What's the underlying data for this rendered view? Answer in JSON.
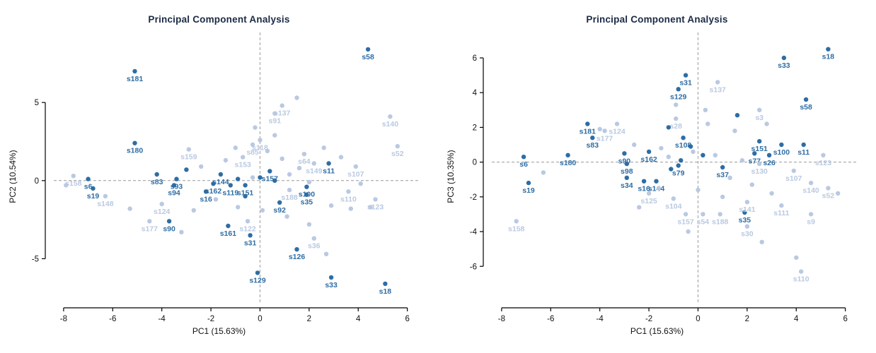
{
  "figure": {
    "background": "#ffffff",
    "dark_point_color": "#2e6da4",
    "light_point_color": "#b9c9e2",
    "title_color": "#1b2a45",
    "axis_color": "#000000",
    "zero_line_color": "#9a9a9a"
  },
  "chart_data": [
    {
      "type": "scatter",
      "title": "Principal Component Analysis",
      "xlabel": "PC1 (15.63%)",
      "ylabel": "PC2 (10.54%)",
      "xlim": [
        -8.4,
        6.5
      ],
      "ylim": [
        -7.6,
        9.3
      ],
      "xticks": [
        -8,
        -6,
        -4,
        -2,
        0,
        2,
        4,
        6
      ],
      "yticks": [
        -5,
        0,
        5
      ],
      "grid": "dashed lines at x=0 and y=0",
      "legend": "none",
      "groups": {
        "d": "#2e6da4",
        "l": "#b9c9e2"
      },
      "points": [
        {
          "id": "s58",
          "x": 4.4,
          "y": 8.4,
          "g": "d"
        },
        {
          "id": "s181",
          "x": -5.1,
          "y": 7.0,
          "g": "d"
        },
        {
          "id": "s180",
          "x": -5.1,
          "y": 2.4,
          "g": "d"
        },
        {
          "id": "s83",
          "x": -4.2,
          "y": 0.4,
          "g": "d"
        },
        {
          "id": "s93",
          "x": -3.4,
          "y": 0.1,
          "g": "d"
        },
        {
          "id": "s94",
          "x": -3.5,
          "y": -0.3,
          "g": "d"
        },
        {
          "id": "s6",
          "x": -7.0,
          "y": 0.1,
          "g": "d"
        },
        {
          "id": "s19",
          "x": -6.8,
          "y": -0.5,
          "g": "d"
        },
        {
          "id": "s144",
          "x": -1.6,
          "y": 0.4,
          "g": "d"
        },
        {
          "id": "s162",
          "x": -1.9,
          "y": -0.2,
          "g": "d"
        },
        {
          "id": "s16",
          "x": -2.2,
          "y": -0.7,
          "g": "d"
        },
        {
          "id": "s119",
          "x": -1.2,
          "y": -0.3,
          "g": "d"
        },
        {
          "id": "s151",
          "x": -0.6,
          "y": -0.3,
          "g": "d"
        },
        {
          "id": "s157",
          "x": 0.4,
          "y": 0.6,
          "g": "d"
        },
        {
          "id": "s11",
          "x": 2.8,
          "y": 1.1,
          "g": "d"
        },
        {
          "id": "s100",
          "x": 1.9,
          "y": -0.4,
          "g": "d"
        },
        {
          "id": "s35",
          "x": 1.9,
          "y": -0.9,
          "g": "d"
        },
        {
          "id": "s92",
          "x": 0.8,
          "y": -1.4,
          "g": "d"
        },
        {
          "id": "s90",
          "x": -3.7,
          "y": -2.6,
          "g": "d"
        },
        {
          "id": "s161",
          "x": -1.3,
          "y": -2.9,
          "g": "d"
        },
        {
          "id": "s31",
          "x": -0.4,
          "y": -3.5,
          "g": "d"
        },
        {
          "id": "s126",
          "x": 1.5,
          "y": -4.4,
          "g": "d"
        },
        {
          "id": "s129",
          "x": -0.1,
          "y": -5.9,
          "g": "d"
        },
        {
          "id": "s33",
          "x": 2.9,
          "y": -6.2,
          "g": "d"
        },
        {
          "id": "s18",
          "x": 5.1,
          "y": -6.6,
          "g": "d"
        },
        {
          "id": "s137",
          "x": 0.9,
          "y": 4.8,
          "g": "l"
        },
        {
          "id": "s91",
          "x": 0.6,
          "y": 4.3,
          "g": "l"
        },
        {
          "id": "s140",
          "x": 5.3,
          "y": 4.1,
          "g": "l"
        },
        {
          "id": "s52",
          "x": 5.6,
          "y": 2.2,
          "g": "l"
        },
        {
          "id": "s118",
          "x": 0.0,
          "y": 2.6,
          "g": "l"
        },
        {
          "id": "s85",
          "x": -0.3,
          "y": 2.3,
          "g": "l"
        },
        {
          "id": "s159",
          "x": -2.9,
          "y": 2.0,
          "g": "l"
        },
        {
          "id": "s153",
          "x": -0.7,
          "y": 1.5,
          "g": "l"
        },
        {
          "id": "s64",
          "x": 1.8,
          "y": 1.7,
          "g": "l"
        },
        {
          "id": "s149",
          "x": 2.2,
          "y": 1.1,
          "g": "l"
        },
        {
          "id": "s107",
          "x": 3.9,
          "y": 0.9,
          "g": "l"
        },
        {
          "id": "s188",
          "x": 1.2,
          "y": -0.6,
          "g": "l"
        },
        {
          "id": "s110",
          "x": 3.6,
          "y": -0.7,
          "g": "l"
        },
        {
          "id": "s123",
          "x": 4.7,
          "y": -1.2,
          "g": "l"
        },
        {
          "id": "s158",
          "x": -7.6,
          "y": 0.3,
          "g": "l"
        },
        {
          "id": "s148",
          "x": -6.3,
          "y": -1.0,
          "g": "l"
        },
        {
          "id": "s124",
          "x": -4.0,
          "y": -1.5,
          "g": "l"
        },
        {
          "id": "s177",
          "x": -4.5,
          "y": -2.6,
          "g": "l"
        },
        {
          "id": "s122",
          "x": -0.5,
          "y": -2.6,
          "g": "l"
        },
        {
          "id": "s36",
          "x": 2.2,
          "y": -3.7,
          "g": "l"
        },
        {
          "id": "",
          "x": 1.5,
          "y": 5.3,
          "g": "l"
        },
        {
          "id": "",
          "x": -0.2,
          "y": 3.4,
          "g": "l"
        },
        {
          "id": "",
          "x": 0.6,
          "y": 2.9,
          "g": "l"
        },
        {
          "id": "",
          "x": -1.0,
          "y": 2.1,
          "g": "l"
        },
        {
          "id": "",
          "x": 2.6,
          "y": 2.1,
          "g": "l"
        },
        {
          "id": "",
          "x": 3.3,
          "y": 1.5,
          "g": "l"
        },
        {
          "id": "",
          "x": -1.4,
          "y": 1.3,
          "g": "l"
        },
        {
          "id": "",
          "x": 0.9,
          "y": 1.4,
          "g": "l"
        },
        {
          "id": "",
          "x": 1.6,
          "y": 0.8,
          "g": "l"
        },
        {
          "id": "",
          "x": 0.3,
          "y": 1.9,
          "g": "l"
        },
        {
          "id": "",
          "x": 1.2,
          "y": 0.4,
          "g": "l"
        },
        {
          "id": "",
          "x": 2.0,
          "y": -0.1,
          "g": "l"
        },
        {
          "id": "",
          "x": 4.1,
          "y": -0.2,
          "g": "l"
        },
        {
          "id": "",
          "x": 2.9,
          "y": -1.6,
          "g": "l"
        },
        {
          "id": "",
          "x": 3.7,
          "y": -1.8,
          "g": "l"
        },
        {
          "id": "",
          "x": 4.5,
          "y": -1.7,
          "g": "l"
        },
        {
          "id": "",
          "x": 0.1,
          "y": -1.9,
          "g": "l"
        },
        {
          "id": "",
          "x": -0.9,
          "y": -1.7,
          "g": "l"
        },
        {
          "id": "",
          "x": -2.7,
          "y": -1.9,
          "g": "l"
        },
        {
          "id": "",
          "x": -1.8,
          "y": -1.2,
          "g": "l"
        },
        {
          "id": "",
          "x": -3.2,
          "y": -3.3,
          "g": "l"
        },
        {
          "id": "",
          "x": 1.1,
          "y": -2.3,
          "g": "l"
        },
        {
          "id": "",
          "x": 2.0,
          "y": -2.8,
          "g": "l"
        },
        {
          "id": "",
          "x": 2.7,
          "y": -4.7,
          "g": "l"
        },
        {
          "id": "",
          "x": -7.9,
          "y": -0.3,
          "g": "l"
        },
        {
          "id": "",
          "x": -2.4,
          "y": 0.9,
          "g": "l"
        },
        {
          "id": "",
          "x": -0.3,
          "y": 0.2,
          "g": "l"
        },
        {
          "id": "",
          "x": -5.3,
          "y": -1.8,
          "g": "l"
        },
        {
          "id": "",
          "x": -3.0,
          "y": 0.7,
          "g": "d"
        },
        {
          "id": "",
          "x": 0.0,
          "y": 0.2,
          "g": "d"
        },
        {
          "id": "",
          "x": -0.9,
          "y": 0.1,
          "g": "d"
        },
        {
          "id": "",
          "x": 0.6,
          "y": 0.0,
          "g": "d"
        },
        {
          "id": "",
          "x": -0.6,
          "y": -1.0,
          "g": "d"
        }
      ]
    },
    {
      "type": "scatter",
      "title": "Principal Component Analysis",
      "xlabel": "PC1 (15.63%)",
      "ylabel": "PC3 (10.35%)",
      "xlim": [
        -8.4,
        6.5
      ],
      "ylim": [
        -7.9,
        7.3
      ],
      "xticks": [
        -8,
        -6,
        -4,
        -2,
        0,
        2,
        4,
        6
      ],
      "yticks": [
        -6,
        -4,
        -2,
        0,
        2,
        4,
        6
      ],
      "grid": "dashed lines at x=0 and y=0",
      "legend": "none",
      "groups": {
        "d": "#2e6da4",
        "l": "#b9c9e2"
      },
      "points": [
        {
          "id": "s18",
          "x": 5.3,
          "y": 6.5,
          "g": "d"
        },
        {
          "id": "s33",
          "x": 3.5,
          "y": 6.0,
          "g": "d"
        },
        {
          "id": "s31",
          "x": -0.5,
          "y": 5.0,
          "g": "d"
        },
        {
          "id": "s129",
          "x": -0.8,
          "y": 4.2,
          "g": "d"
        },
        {
          "id": "s58",
          "x": 4.4,
          "y": 3.6,
          "g": "d"
        },
        {
          "id": "s181",
          "x": -4.5,
          "y": 2.2,
          "g": "d"
        },
        {
          "id": "s83",
          "x": -4.3,
          "y": 1.4,
          "g": "d"
        },
        {
          "id": "s108",
          "x": -0.6,
          "y": 1.4,
          "g": "d"
        },
        {
          "id": "s151",
          "x": 2.5,
          "y": 1.2,
          "g": "d"
        },
        {
          "id": "s100",
          "x": 3.4,
          "y": 1.0,
          "g": "d"
        },
        {
          "id": "s11",
          "x": 4.3,
          "y": 1.0,
          "g": "d"
        },
        {
          "id": "s77",
          "x": 2.3,
          "y": 0.5,
          "g": "d"
        },
        {
          "id": "s26",
          "x": 2.9,
          "y": 0.4,
          "g": "d"
        },
        {
          "id": "s180",
          "x": -5.3,
          "y": 0.4,
          "g": "d"
        },
        {
          "id": "s6",
          "x": -7.1,
          "y": 0.3,
          "g": "d"
        },
        {
          "id": "s90",
          "x": -3.0,
          "y": 0.5,
          "g": "d"
        },
        {
          "id": "s162",
          "x": -2.0,
          "y": 0.6,
          "g": "d"
        },
        {
          "id": "s98",
          "x": -2.9,
          "y": -0.1,
          "g": "d"
        },
        {
          "id": "s79",
          "x": -0.8,
          "y": -0.2,
          "g": "d"
        },
        {
          "id": "s37",
          "x": 1.0,
          "y": -0.3,
          "g": "d"
        },
        {
          "id": "s19",
          "x": -6.9,
          "y": -1.2,
          "g": "d"
        },
        {
          "id": "s34",
          "x": -2.9,
          "y": -0.9,
          "g": "d"
        },
        {
          "id": "s16",
          "x": -2.2,
          "y": -1.1,
          "g": "d"
        },
        {
          "id": "s144",
          "x": -1.7,
          "y": -1.1,
          "g": "d"
        },
        {
          "id": "s35",
          "x": 1.9,
          "y": -2.9,
          "g": "d"
        },
        {
          "id": "s137",
          "x": 0.8,
          "y": 4.6,
          "g": "l"
        },
        {
          "id": "s3",
          "x": 2.5,
          "y": 3.0,
          "g": "l"
        },
        {
          "id": "s28",
          "x": -0.9,
          "y": 2.5,
          "g": "l"
        },
        {
          "id": "s124",
          "x": -3.3,
          "y": 2.2,
          "g": "l"
        },
        {
          "id": "s177",
          "x": -3.8,
          "y": 1.8,
          "g": "l"
        },
        {
          "id": "s123",
          "x": 5.1,
          "y": 0.4,
          "g": "l"
        },
        {
          "id": "s130",
          "x": 2.5,
          "y": -0.1,
          "g": "l"
        },
        {
          "id": "s107",
          "x": 3.9,
          "y": -0.5,
          "g": "l"
        },
        {
          "id": "s140",
          "x": 4.6,
          "y": -1.2,
          "g": "l"
        },
        {
          "id": "s52",
          "x": 5.3,
          "y": -1.5,
          "g": "l"
        },
        {
          "id": "s125",
          "x": -2.0,
          "y": -1.8,
          "g": "l"
        },
        {
          "id": "s104",
          "x": -1.0,
          "y": -2.1,
          "g": "l"
        },
        {
          "id": "s141",
          "x": 2.0,
          "y": -2.3,
          "g": "l"
        },
        {
          "id": "s111",
          "x": 3.4,
          "y": -2.5,
          "g": "l"
        },
        {
          "id": "s9",
          "x": 4.6,
          "y": -3.0,
          "g": "l"
        },
        {
          "id": "s157",
          "x": -0.5,
          "y": -3.0,
          "g": "l"
        },
        {
          "id": "s54",
          "x": 0.2,
          "y": -3.0,
          "g": "l"
        },
        {
          "id": "s188",
          "x": 0.9,
          "y": -3.0,
          "g": "l"
        },
        {
          "id": "s30",
          "x": 2.0,
          "y": -3.7,
          "g": "l"
        },
        {
          "id": "s158",
          "x": -7.4,
          "y": -3.4,
          "g": "l"
        },
        {
          "id": "s110",
          "x": 4.2,
          "y": -6.3,
          "g": "l"
        },
        {
          "id": "",
          "x": -4.0,
          "y": 1.9,
          "g": "l"
        },
        {
          "id": "",
          "x": -2.6,
          "y": 1.0,
          "g": "l"
        },
        {
          "id": "",
          "x": -1.5,
          "y": 0.8,
          "g": "l"
        },
        {
          "id": "",
          "x": 0.4,
          "y": 2.2,
          "g": "l"
        },
        {
          "id": "",
          "x": 1.5,
          "y": 1.8,
          "g": "l"
        },
        {
          "id": "",
          "x": 2.8,
          "y": 2.2,
          "g": "l"
        },
        {
          "id": "",
          "x": -0.2,
          "y": 0.6,
          "g": "l"
        },
        {
          "id": "",
          "x": 0.7,
          "y": 0.4,
          "g": "l"
        },
        {
          "id": "",
          "x": 1.3,
          "y": -0.9,
          "g": "l"
        },
        {
          "id": "",
          "x": 2.2,
          "y": -1.3,
          "g": "l"
        },
        {
          "id": "",
          "x": 3.0,
          "y": -1.8,
          "g": "l"
        },
        {
          "id": "",
          "x": -1.6,
          "y": -1.5,
          "g": "l"
        },
        {
          "id": "",
          "x": -2.4,
          "y": -2.6,
          "g": "l"
        },
        {
          "id": "",
          "x": 0.0,
          "y": -1.6,
          "g": "l"
        },
        {
          "id": "",
          "x": 1.0,
          "y": -2.0,
          "g": "l"
        },
        {
          "id": "",
          "x": 2.6,
          "y": -4.6,
          "g": "l"
        },
        {
          "id": "",
          "x": 4.0,
          "y": -5.5,
          "g": "l"
        },
        {
          "id": "",
          "x": -0.4,
          "y": -4.0,
          "g": "l"
        },
        {
          "id": "",
          "x": -6.3,
          "y": -0.6,
          "g": "l"
        },
        {
          "id": "",
          "x": 5.7,
          "y": -1.8,
          "g": "l"
        },
        {
          "id": "",
          "x": -0.9,
          "y": 3.3,
          "g": "l"
        },
        {
          "id": "",
          "x": 0.3,
          "y": 3.0,
          "g": "l"
        },
        {
          "id": "",
          "x": 1.8,
          "y": 0.1,
          "g": "l"
        },
        {
          "id": "",
          "x": -1.2,
          "y": 0.3,
          "g": "l"
        },
        {
          "id": "",
          "x": -1.2,
          "y": 2.0,
          "g": "d"
        },
        {
          "id": "",
          "x": -0.3,
          "y": 0.9,
          "g": "d"
        },
        {
          "id": "",
          "x": 0.2,
          "y": 0.4,
          "g": "d"
        },
        {
          "id": "",
          "x": -0.7,
          "y": 0.1,
          "g": "d"
        },
        {
          "id": "",
          "x": -1.1,
          "y": -0.4,
          "g": "d"
        },
        {
          "id": "",
          "x": 1.6,
          "y": 2.7,
          "g": "d"
        }
      ]
    }
  ]
}
